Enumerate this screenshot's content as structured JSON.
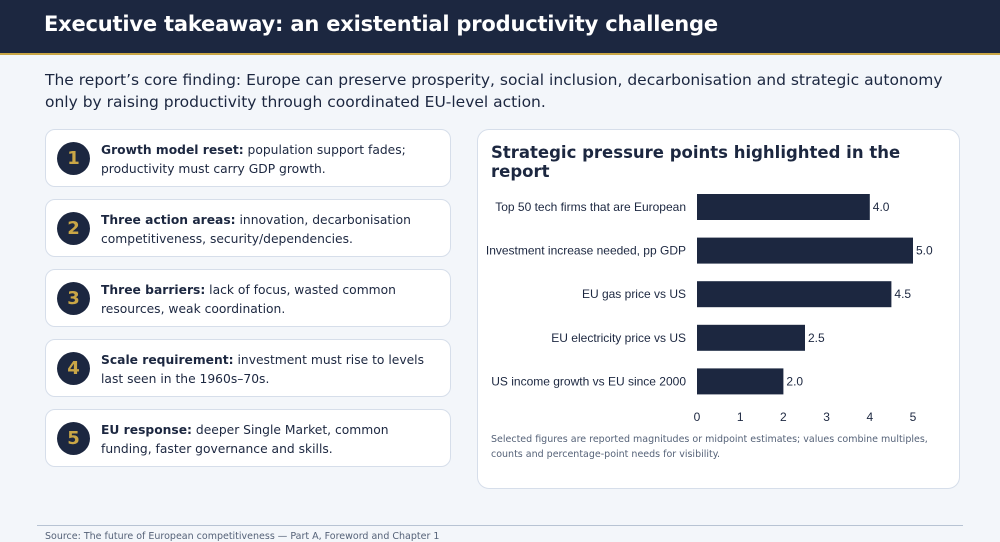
{
  "header": {
    "title": "Executive takeaway: an existential productivity challenge"
  },
  "intro": "The report’s core finding: Europe can preserve prosperity, social inclusion, decarbonisation and strategic autonomy only by raising productivity through coordinated EU-level action.",
  "cards": [
    {
      "num": "1",
      "title": "Growth model reset:",
      "text": " population support fades; productivity must carry GDP growth."
    },
    {
      "num": "2",
      "title": "Three action areas:",
      "text": " innovation, decarbonisation competitiveness, security/dependencies."
    },
    {
      "num": "3",
      "title": "Three barriers:",
      "text": " lack of focus, wasted common resources, weak coordination."
    },
    {
      "num": "4",
      "title": "Scale requirement:",
      "text": " investment must rise to levels last seen in the 1960s–70s."
    },
    {
      "num": "5",
      "title": "EU response:",
      "text": " deeper Single Market, common funding, faster governance and skills."
    }
  ],
  "chart_panel": {
    "note": "Selected figures are reported magnitudes or midpoint estimates; values combine multiples, counts and percentage-point needs for visibility."
  },
  "chart_data": {
    "type": "bar",
    "orientation": "horizontal",
    "title": "Strategic pressure points highlighted in the report",
    "categories": [
      "Top 50 tech firms that are European",
      "Investment increase needed, pp GDP",
      "EU gas price vs US",
      "EU electricity price vs US",
      "US income growth vs EU since 2000"
    ],
    "values": [
      4.0,
      5.0,
      4.5,
      2.5,
      2.0
    ],
    "value_labels": [
      "4.0",
      "5.0",
      "4.5",
      "2.5",
      "2.0"
    ],
    "xlim": [
      0,
      5
    ],
    "xticks": [
      "0",
      "1",
      "2",
      "3",
      "4",
      "5"
    ],
    "xlabel": "",
    "ylabel": "",
    "grid": false,
    "legend": "none",
    "bar_color": "#1c2740"
  },
  "footer": {
    "source": "Source: The future of European competitiveness — Part A, Foreword and Chapter 1"
  },
  "colors": {
    "navy": "#1c2740",
    "gold": "#c9a646",
    "background": "#f3f6fa"
  }
}
